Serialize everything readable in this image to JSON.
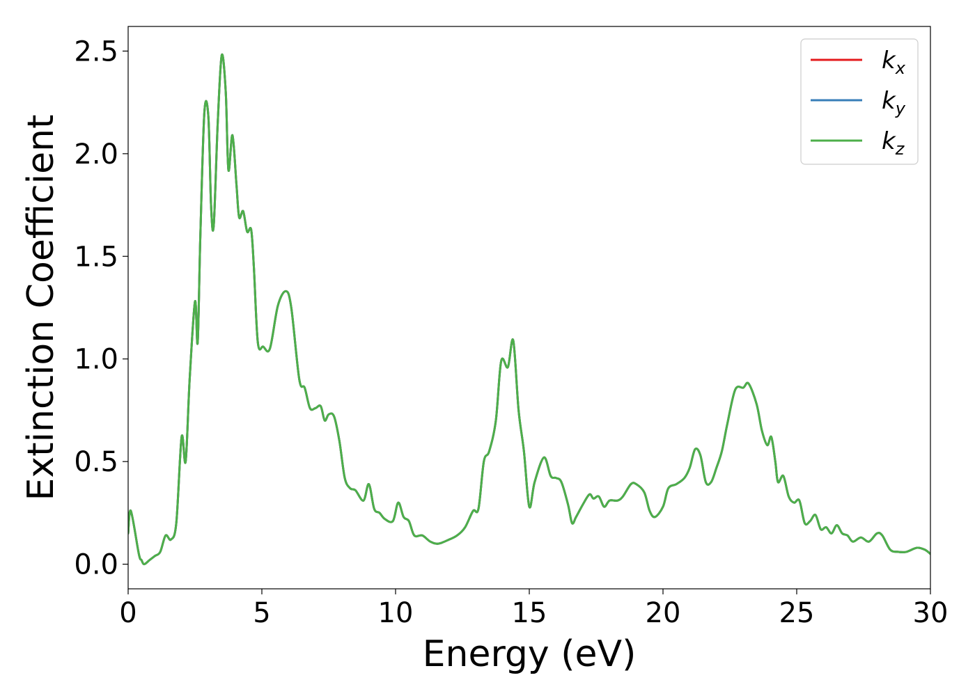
{
  "chart_data": {
    "type": "line",
    "xlabel": "Energy (eV)",
    "ylabel": "Extinction Coefficient",
    "xlim": [
      0,
      30
    ],
    "ylim": [
      -0.12,
      2.62
    ],
    "xticks": [
      0,
      5,
      10,
      15,
      20,
      25,
      30
    ],
    "yticks": [
      0.0,
      0.5,
      1.0,
      1.5,
      2.0,
      2.5
    ],
    "xtick_labels": [
      "0",
      "5",
      "10",
      "15",
      "20",
      "25",
      "30"
    ],
    "ytick_labels": [
      "0.0",
      "0.5",
      "1.0",
      "1.5",
      "2.0",
      "2.5"
    ],
    "grid": false,
    "legend": "top-right",
    "x": [
      0,
      0.1,
      0.4,
      0.5,
      0.6,
      0.8,
      1.0,
      1.2,
      1.4,
      1.6,
      1.8,
      2.0,
      2.15,
      2.3,
      2.5,
      2.6,
      2.7,
      2.85,
      3.0,
      3.1,
      3.2,
      3.35,
      3.5,
      3.65,
      3.75,
      3.9,
      4.05,
      4.15,
      4.3,
      4.45,
      4.6,
      4.7,
      4.85,
      5.05,
      5.3,
      5.6,
      5.9,
      6.1,
      6.4,
      6.6,
      6.8,
      7.0,
      7.2,
      7.35,
      7.5,
      7.7,
      7.9,
      8.1,
      8.3,
      8.5,
      8.8,
      9.0,
      9.2,
      9.4,
      9.6,
      9.9,
      10.1,
      10.3,
      10.5,
      10.7,
      11.0,
      11.3,
      11.6,
      12.0,
      12.3,
      12.6,
      12.9,
      13.1,
      13.3,
      13.5,
      13.75,
      13.95,
      14.2,
      14.4,
      14.6,
      14.8,
      15.0,
      15.2,
      15.55,
      15.8,
      16.0,
      16.2,
      16.45,
      16.6,
      16.75,
      17.0,
      17.25,
      17.4,
      17.6,
      17.8,
      18.0,
      18.3,
      18.5,
      18.8,
      19.0,
      19.3,
      19.5,
      19.7,
      20.0,
      20.2,
      20.5,
      20.8,
      21.0,
      21.2,
      21.4,
      21.6,
      21.8,
      22.0,
      22.2,
      22.4,
      22.7,
      23.0,
      23.2,
      23.5,
      23.7,
      23.9,
      24.05,
      24.2,
      24.3,
      24.5,
      24.7,
      24.9,
      25.1,
      25.3,
      25.5,
      25.7,
      25.9,
      26.1,
      26.3,
      26.5,
      26.7,
      26.9,
      27.1,
      27.4,
      27.7,
      28.0,
      28.2,
      28.5,
      28.8,
      29.1,
      29.5,
      29.8,
      30.0
    ],
    "series": [
      {
        "name": "k_x",
        "color": "#e41a1c",
        "values": [
          0.15,
          0.26,
          0.05,
          0.02,
          0.0,
          0.02,
          0.04,
          0.06,
          0.14,
          0.12,
          0.2,
          0.62,
          0.5,
          0.9,
          1.28,
          1.08,
          1.6,
          2.2,
          2.18,
          1.75,
          1.65,
          2.15,
          2.48,
          2.3,
          1.92,
          2.09,
          1.85,
          1.69,
          1.72,
          1.62,
          1.63,
          1.45,
          1.08,
          1.06,
          1.05,
          1.26,
          1.33,
          1.25,
          0.9,
          0.86,
          0.76,
          0.76,
          0.77,
          0.7,
          0.73,
          0.72,
          0.6,
          0.42,
          0.37,
          0.36,
          0.31,
          0.39,
          0.27,
          0.25,
          0.22,
          0.21,
          0.3,
          0.23,
          0.21,
          0.14,
          0.14,
          0.11,
          0.1,
          0.12,
          0.14,
          0.18,
          0.26,
          0.27,
          0.5,
          0.55,
          0.7,
          0.99,
          0.96,
          1.09,
          0.75,
          0.55,
          0.28,
          0.4,
          0.52,
          0.43,
          0.42,
          0.4,
          0.29,
          0.2,
          0.23,
          0.29,
          0.34,
          0.32,
          0.33,
          0.28,
          0.31,
          0.31,
          0.33,
          0.39,
          0.39,
          0.35,
          0.26,
          0.23,
          0.28,
          0.37,
          0.39,
          0.42,
          0.47,
          0.56,
          0.53,
          0.4,
          0.4,
          0.47,
          0.55,
          0.68,
          0.85,
          0.86,
          0.88,
          0.78,
          0.65,
          0.58,
          0.62,
          0.5,
          0.4,
          0.43,
          0.33,
          0.3,
          0.31,
          0.2,
          0.21,
          0.24,
          0.17,
          0.18,
          0.15,
          0.19,
          0.15,
          0.14,
          0.11,
          0.13,
          0.11,
          0.15,
          0.14,
          0.07,
          0.06,
          0.06,
          0.08,
          0.07,
          0.05
        ]
      },
      {
        "name": "k_y",
        "color": "#377eb8",
        "values": [
          0.15,
          0.26,
          0.05,
          0.02,
          0.0,
          0.02,
          0.04,
          0.06,
          0.14,
          0.12,
          0.2,
          0.62,
          0.5,
          0.9,
          1.28,
          1.08,
          1.6,
          2.2,
          2.18,
          1.75,
          1.65,
          2.15,
          2.48,
          2.3,
          1.92,
          2.09,
          1.85,
          1.69,
          1.72,
          1.62,
          1.63,
          1.45,
          1.08,
          1.06,
          1.05,
          1.26,
          1.33,
          1.25,
          0.9,
          0.86,
          0.76,
          0.76,
          0.77,
          0.7,
          0.73,
          0.72,
          0.6,
          0.42,
          0.37,
          0.36,
          0.31,
          0.39,
          0.27,
          0.25,
          0.22,
          0.21,
          0.3,
          0.23,
          0.21,
          0.14,
          0.14,
          0.11,
          0.1,
          0.12,
          0.14,
          0.18,
          0.26,
          0.27,
          0.5,
          0.55,
          0.7,
          0.99,
          0.96,
          1.09,
          0.75,
          0.55,
          0.28,
          0.4,
          0.52,
          0.43,
          0.42,
          0.4,
          0.29,
          0.2,
          0.23,
          0.29,
          0.34,
          0.32,
          0.33,
          0.28,
          0.31,
          0.31,
          0.33,
          0.39,
          0.39,
          0.35,
          0.26,
          0.23,
          0.28,
          0.37,
          0.39,
          0.42,
          0.47,
          0.56,
          0.53,
          0.4,
          0.4,
          0.47,
          0.55,
          0.68,
          0.85,
          0.86,
          0.88,
          0.78,
          0.65,
          0.58,
          0.62,
          0.5,
          0.4,
          0.43,
          0.33,
          0.3,
          0.31,
          0.2,
          0.21,
          0.24,
          0.17,
          0.18,
          0.15,
          0.19,
          0.15,
          0.14,
          0.11,
          0.13,
          0.11,
          0.15,
          0.14,
          0.07,
          0.06,
          0.06,
          0.08,
          0.07,
          0.05
        ]
      },
      {
        "name": "k_z",
        "color": "#4daf4a",
        "values": [
          0.15,
          0.26,
          0.05,
          0.02,
          0.0,
          0.02,
          0.04,
          0.06,
          0.14,
          0.12,
          0.2,
          0.62,
          0.5,
          0.9,
          1.28,
          1.08,
          1.6,
          2.2,
          2.18,
          1.75,
          1.65,
          2.15,
          2.48,
          2.3,
          1.92,
          2.09,
          1.85,
          1.69,
          1.72,
          1.62,
          1.63,
          1.45,
          1.08,
          1.06,
          1.05,
          1.26,
          1.33,
          1.25,
          0.9,
          0.86,
          0.76,
          0.76,
          0.77,
          0.7,
          0.73,
          0.72,
          0.6,
          0.42,
          0.37,
          0.36,
          0.31,
          0.39,
          0.27,
          0.25,
          0.22,
          0.21,
          0.3,
          0.23,
          0.21,
          0.14,
          0.14,
          0.11,
          0.1,
          0.12,
          0.14,
          0.18,
          0.26,
          0.27,
          0.5,
          0.55,
          0.7,
          0.99,
          0.96,
          1.09,
          0.75,
          0.55,
          0.28,
          0.4,
          0.52,
          0.43,
          0.42,
          0.4,
          0.29,
          0.2,
          0.23,
          0.29,
          0.34,
          0.32,
          0.33,
          0.28,
          0.31,
          0.31,
          0.33,
          0.39,
          0.39,
          0.35,
          0.26,
          0.23,
          0.28,
          0.37,
          0.39,
          0.42,
          0.47,
          0.56,
          0.53,
          0.4,
          0.4,
          0.47,
          0.55,
          0.68,
          0.85,
          0.86,
          0.88,
          0.78,
          0.65,
          0.58,
          0.62,
          0.5,
          0.4,
          0.43,
          0.33,
          0.3,
          0.31,
          0.2,
          0.21,
          0.24,
          0.17,
          0.18,
          0.15,
          0.19,
          0.15,
          0.14,
          0.11,
          0.13,
          0.11,
          0.15,
          0.14,
          0.07,
          0.06,
          0.06,
          0.08,
          0.07,
          0.05
        ]
      }
    ],
    "legend_entries": [
      {
        "base": "k",
        "sub": "x",
        "color": "#e41a1c"
      },
      {
        "base": "k",
        "sub": "y",
        "color": "#377eb8"
      },
      {
        "base": "k",
        "sub": "z",
        "color": "#4daf4a"
      }
    ]
  }
}
